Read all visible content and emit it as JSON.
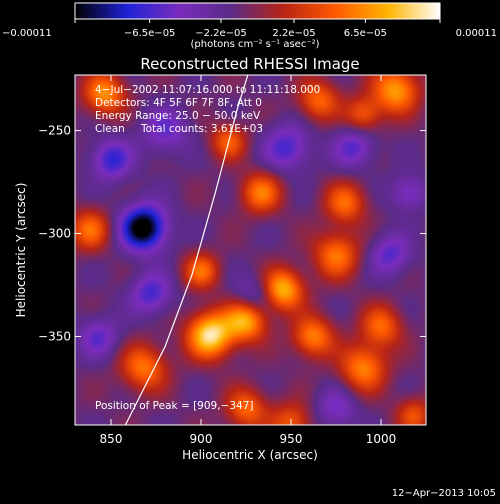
{
  "chart_data": {
    "type": "heatmap",
    "title": "Reconstructed RHESSI Image",
    "xlabel": "Heliocentric X (arcsec)",
    "ylabel": "Heliocentric Y (arcsec)",
    "xlim": [
      830,
      1025
    ],
    "ylim": [
      -393,
      -223
    ],
    "x_ticks": [
      850,
      900,
      950,
      1000
    ],
    "x_tick_labels": [
      "850",
      "900",
      "950",
      "1000"
    ],
    "y_ticks": [
      -250,
      -300,
      -350
    ],
    "y_tick_labels": [
      "−250",
      "−300",
      "−350"
    ],
    "colorbar": {
      "range": [
        -0.00011,
        0.00011
      ],
      "tick_values": [
        -0.00011,
        -6.5e-05,
        -2.2e-05,
        2.2e-05,
        6.5e-05,
        0.00011
      ],
      "tick_labels": [
        "−0.00011",
        "−6.5e−05",
        "−2.2e−05",
        "2.2e−05",
        "6.5e−05",
        "0.00011"
      ],
      "units_label": "(photons cm⁻² s⁻¹ asec⁻²)",
      "colormap": [
        "#000000",
        "#1f22d8",
        "#7a2cbd",
        "#5a2b86",
        "#b82415",
        "#ff5a00",
        "#ffb400",
        "#ffffff"
      ]
    },
    "annotations": [
      "4−Jul−2002 11:07:16.000 to 11:11:18.000",
      "Detectors: 4F 5F 6F 7F 8F, Att 0",
      "Energy Range: 25.0 − 50.0 keV",
      "Clean",
      "Total counts: 3.61E+03",
      "Position of Peak = [909,−347]"
    ],
    "peak": {
      "x": 909,
      "y": -347
    },
    "limb_curve": {
      "points": [
        [
          858,
          -393
        ],
        [
          880,
          -355
        ],
        [
          895,
          -320
        ],
        [
          908,
          -280
        ],
        [
          920,
          -240
        ],
        [
          926,
          -223
        ]
      ]
    },
    "sources": [
      {
        "x": 868,
        "y": -297,
        "amp": -1.0,
        "s": 9
      },
      {
        "x": 850,
        "y": -264,
        "amp": -0.55,
        "s": 8
      },
      {
        "x": 872,
        "y": -329,
        "amp": -0.5,
        "s": 8
      },
      {
        "x": 843,
        "y": -350,
        "amp": -0.4,
        "s": 8
      },
      {
        "x": 880,
        "y": -250,
        "amp": -0.4,
        "s": 9
      },
      {
        "x": 948,
        "y": -258,
        "amp": -0.5,
        "s": 9
      },
      {
        "x": 985,
        "y": -258,
        "amp": -0.45,
        "s": 8
      },
      {
        "x": 1005,
        "y": -310,
        "amp": -0.45,
        "s": 8
      },
      {
        "x": 1015,
        "y": -280,
        "amp": -0.4,
        "s": 7
      },
      {
        "x": 930,
        "y": -330,
        "amp": -0.35,
        "s": 8
      },
      {
        "x": 975,
        "y": -385,
        "amp": -0.35,
        "s": 8
      },
      {
        "x": 846,
        "y": -232,
        "amp": 0.7,
        "s": 8
      },
      {
        "x": 838,
        "y": -298,
        "amp": 0.55,
        "s": 8
      },
      {
        "x": 868,
        "y": -365,
        "amp": 0.6,
        "s": 9
      },
      {
        "x": 905,
        "y": -349,
        "amp": 1.0,
        "s": 9
      },
      {
        "x": 925,
        "y": -342,
        "amp": 0.8,
        "s": 8
      },
      {
        "x": 945,
        "y": -327,
        "amp": 0.85,
        "s": 8
      },
      {
        "x": 900,
        "y": -318,
        "amp": 0.55,
        "s": 7
      },
      {
        "x": 962,
        "y": -350,
        "amp": 0.65,
        "s": 8
      },
      {
        "x": 990,
        "y": -365,
        "amp": 0.65,
        "s": 9
      },
      {
        "x": 1000,
        "y": -345,
        "amp": 0.55,
        "s": 8
      },
      {
        "x": 975,
        "y": -310,
        "amp": 0.6,
        "s": 9
      },
      {
        "x": 980,
        "y": -285,
        "amp": 0.55,
        "s": 8
      },
      {
        "x": 1008,
        "y": -230,
        "amp": 0.75,
        "s": 9
      },
      {
        "x": 965,
        "y": -235,
        "amp": 0.55,
        "s": 8
      },
      {
        "x": 990,
        "y": -242,
        "amp": 0.5,
        "s": 7
      },
      {
        "x": 933,
        "y": -280,
        "amp": 0.6,
        "s": 8
      },
      {
        "x": 915,
        "y": -255,
        "amp": 0.5,
        "s": 7
      },
      {
        "x": 925,
        "y": -385,
        "amp": 0.55,
        "s": 8
      },
      {
        "x": 950,
        "y": -392,
        "amp": 0.5,
        "s": 8
      },
      {
        "x": 1018,
        "y": -388,
        "amp": 0.45,
        "s": 7
      }
    ]
  },
  "footer": {
    "timestamp": "12−Apr−2013 10:05"
  }
}
